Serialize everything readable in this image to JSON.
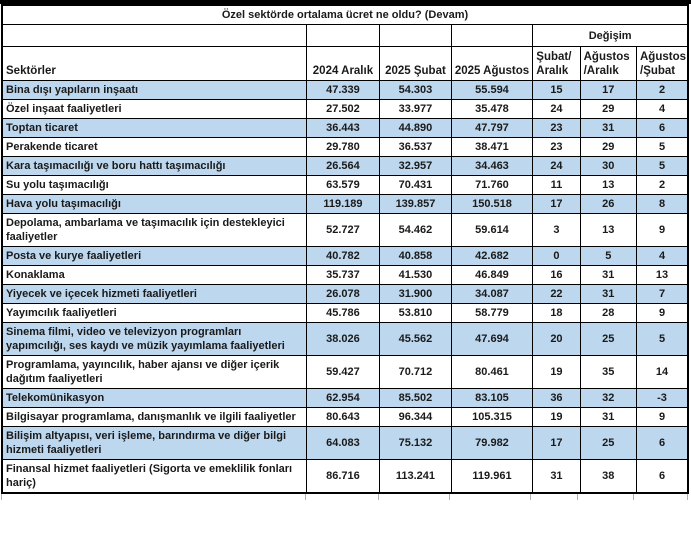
{
  "colors": {
    "row_highlight": "#BDD7EE",
    "border": "#000000",
    "background": "#FFFFFF"
  },
  "chart_data": {
    "type": "table",
    "title": "Özel sektörde ortalama ücret ne oldu? (Devam)",
    "change_group_label": "Değişim",
    "columns": [
      "Sektörler",
      "2024 Aralık",
      "2025 Şubat",
      "2025 Ağustos",
      "Şubat/ Aralık",
      "Ağustos /Aralık",
      "Ağustos /Şubat"
    ],
    "rows": [
      {
        "sector": "Bina dışı yapıların inşaatı",
        "values": [
          "47.339",
          "54.303",
          "55.594",
          "15",
          "17",
          "2"
        ]
      },
      {
        "sector": "Özel inşaat faaliyetleri",
        "values": [
          "27.502",
          "33.977",
          "35.478",
          "24",
          "29",
          "4"
        ]
      },
      {
        "sector": "Toptan ticaret",
        "values": [
          "36.443",
          "44.890",
          "47.797",
          "23",
          "31",
          "6"
        ]
      },
      {
        "sector": "Perakende ticaret",
        "values": [
          "29.780",
          "36.537",
          "38.471",
          "23",
          "29",
          "5"
        ]
      },
      {
        "sector": "Kara taşımacılığı ve boru hattı taşımacılığı",
        "values": [
          "26.564",
          "32.957",
          "34.463",
          "24",
          "30",
          "5"
        ]
      },
      {
        "sector": "Su yolu taşımacılığı",
        "values": [
          "63.579",
          "70.431",
          "71.760",
          "11",
          "13",
          "2"
        ]
      },
      {
        "sector": "Hava yolu taşımacılığı",
        "values": [
          "119.189",
          "139.857",
          "150.518",
          "17",
          "26",
          "8"
        ]
      },
      {
        "sector": "Depolama, ambarlama ve taşımacılık için destekleyici faaliyetler",
        "values": [
          "52.727",
          "54.462",
          "59.614",
          "3",
          "13",
          "9"
        ]
      },
      {
        "sector": "Posta ve kurye faaliyetleri",
        "values": [
          "40.782",
          "40.858",
          "42.682",
          "0",
          "5",
          "4"
        ]
      },
      {
        "sector": "Konaklama",
        "values": [
          "35.737",
          "41.530",
          "46.849",
          "16",
          "31",
          "13"
        ]
      },
      {
        "sector": "Yiyecek ve içecek hizmeti faaliyetleri",
        "values": [
          "26.078",
          "31.900",
          "34.087",
          "22",
          "31",
          "7"
        ]
      },
      {
        "sector": "Yayımcılık faaliyetleri",
        "values": [
          "45.786",
          "53.810",
          "58.779",
          "18",
          "28",
          "9"
        ]
      },
      {
        "sector": "Sinema filmi, video ve televizyon programları yapımcılığı, ses kaydı ve müzik yayımlama faaliyetleri",
        "values": [
          "38.026",
          "45.562",
          "47.694",
          "20",
          "25",
          "5"
        ]
      },
      {
        "sector": "Programlama, yayıncılık, haber ajansı ve diğer içerik dağıtım faaliyetleri",
        "values": [
          "59.427",
          "70.712",
          "80.461",
          "19",
          "35",
          "14"
        ]
      },
      {
        "sector": "Telekomünikasyon",
        "values": [
          "62.954",
          "85.502",
          "83.105",
          "36",
          "32",
          "-3"
        ]
      },
      {
        "sector": "Bilgisayar programlama, danışmanlık ve ilgili faaliyetler",
        "values": [
          "80.643",
          "96.344",
          "105.315",
          "19",
          "31",
          "9"
        ]
      },
      {
        "sector": "Bilişim altyapısı, veri işleme, barındırma ve diğer bilgi hizmeti faaliyetleri",
        "values": [
          "64.083",
          "75.132",
          "79.982",
          "17",
          "25",
          "6"
        ]
      },
      {
        "sector": "Finansal hizmet faaliyetleri (Sigorta ve emeklilik fonları hariç)",
        "values": [
          "86.716",
          "113.241",
          "119.961",
          "31",
          "38",
          "6"
        ]
      }
    ]
  }
}
